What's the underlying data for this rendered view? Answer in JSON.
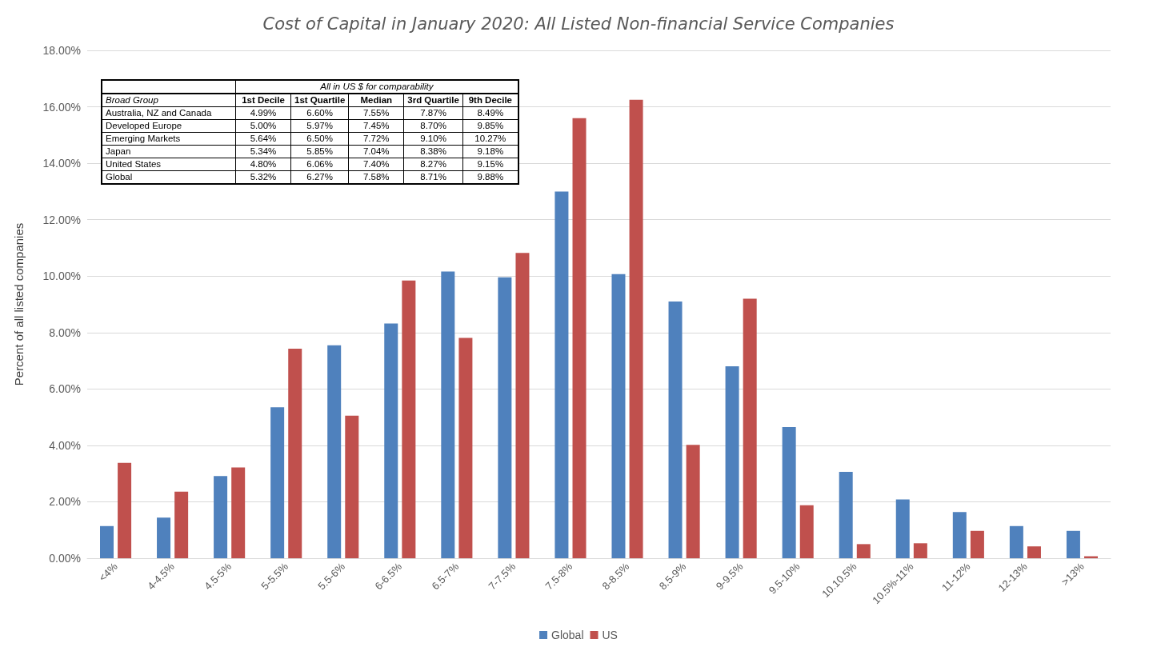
{
  "chart_data": {
    "type": "bar",
    "title": "Cost of Capital in January 2020: All Listed Non-financial Service Companies",
    "ylabel": "Percent of all listed companies",
    "categories": [
      "<4%",
      "4-4.5%",
      "4.5-5%",
      "5-5.5%",
      "5.5-6%",
      "6-6.5%",
      "6.5-7%",
      "7-7.5%",
      "7.5-8%",
      "8-8.5%",
      "8.5-9%",
      "9-9.5%",
      "9.5-10%",
      "10.10.5%",
      "10.5%-11%",
      "11-12%",
      "12-13%",
      ">13%"
    ],
    "series": [
      {
        "name": "Global",
        "color": "#4f81bd",
        "values": [
          1.14,
          1.44,
          2.91,
          5.35,
          7.55,
          8.32,
          10.16,
          9.96,
          13.0,
          10.07,
          9.1,
          6.8,
          4.65,
          3.06,
          2.08,
          1.64,
          1.14,
          0.97
        ]
      },
      {
        "name": "US",
        "color": "#c0504d",
        "values": [
          3.38,
          2.36,
          3.22,
          7.43,
          5.05,
          9.84,
          7.81,
          10.82,
          15.6,
          16.25,
          4.02,
          9.2,
          1.88,
          0.5,
          0.53,
          0.97,
          0.42,
          0.07
        ]
      }
    ],
    "ylim": [
      0,
      18
    ],
    "yticks": [
      {
        "value": 0,
        "label": "0.00%"
      },
      {
        "value": 2,
        "label": "2.00%"
      },
      {
        "value": 4,
        "label": "4.00%"
      },
      {
        "value": 6,
        "label": "6.00%"
      },
      {
        "value": 8,
        "label": "8.00%"
      },
      {
        "value": 10,
        "label": "10.00%"
      },
      {
        "value": 12,
        "label": "12.00%"
      },
      {
        "value": 14,
        "label": "14.00%"
      },
      {
        "value": 16,
        "label": "16.00%"
      },
      {
        "value": 18,
        "label": "18.00%"
      }
    ],
    "grid": "y",
    "legend": "bottom",
    "annotations": [
      "All in US $ for comparability",
      "Broad Group",
      "1st Decile",
      "1st Quartile",
      "Median",
      "3rd Quartile",
      "9th Decile",
      "Australia, NZ and Canada",
      "4.99%",
      "6.60%",
      "7.55%",
      "7.87%",
      "8.49%",
      "Developed Europe",
      "5.00%",
      "5.97%",
      "7.45%",
      "8.70%",
      "9.85%",
      "Emerging Markets",
      "5.64%",
      "6.50%",
      "7.72%",
      "9.10%",
      "10.27%",
      "Japan",
      "5.34%",
      "5.85%",
      "7.04%",
      "8.38%",
      "9.18%",
      "United States",
      "4.80%",
      "6.06%",
      "7.40%",
      "8.27%",
      "9.15%",
      "Global",
      "5.32%",
      "6.27%",
      "7.58%",
      "8.71%",
      "9.88%"
    ]
  }
}
